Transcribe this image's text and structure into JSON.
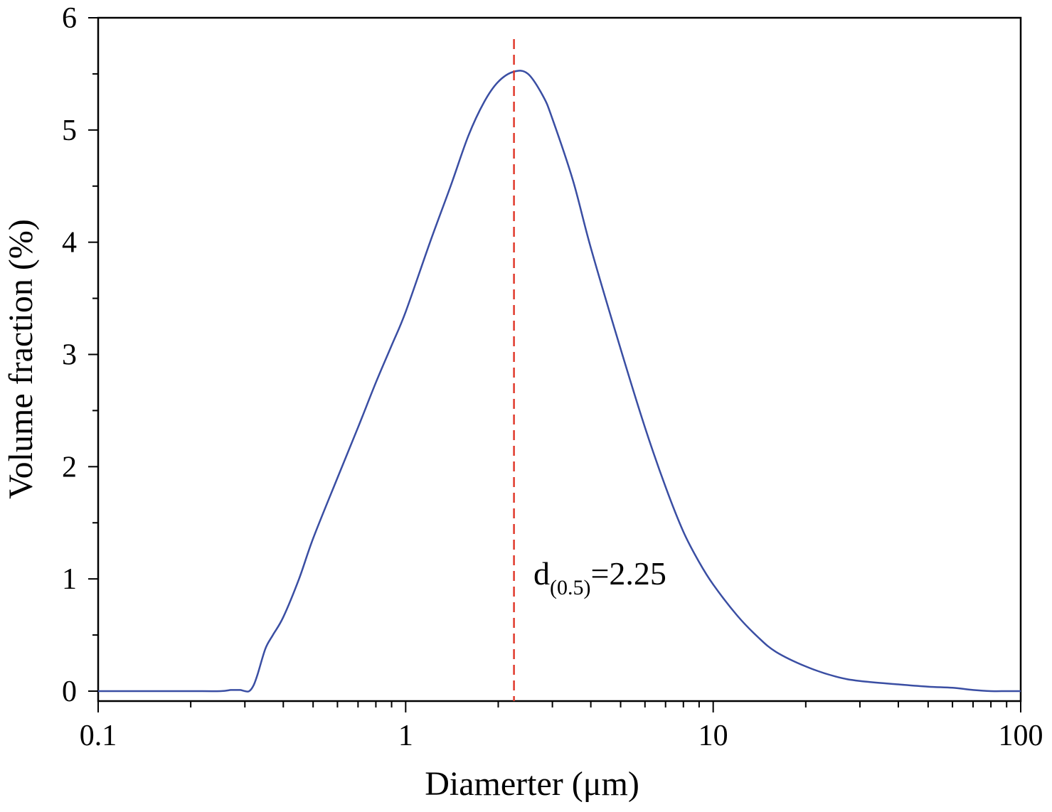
{
  "chart_data": {
    "type": "line",
    "title": "",
    "xlabel": "Diamerter (μm)",
    "ylabel": "Volume fraction (%)",
    "xscale": "log",
    "xlim": [
      0.1,
      100
    ],
    "ylim": [
      0,
      6
    ],
    "grid": false,
    "legend": "none",
    "x_ticks": [
      {
        "value": 0.1,
        "label": "0.1"
      },
      {
        "value": 1,
        "label": "1"
      },
      {
        "value": 10,
        "label": "10"
      },
      {
        "value": 100,
        "label": "100"
      }
    ],
    "y_ticks": [
      {
        "value": 0,
        "label": "0"
      },
      {
        "value": 1,
        "label": "1"
      },
      {
        "value": 2,
        "label": "2"
      },
      {
        "value": 3,
        "label": "3"
      },
      {
        "value": 4,
        "label": "4"
      },
      {
        "value": 5,
        "label": "5"
      },
      {
        "value": 6,
        "label": "6"
      }
    ],
    "series": [
      {
        "color": "#3a4ea3",
        "x": [
          0.1,
          0.15,
          0.2,
          0.25,
          0.27,
          0.28,
          0.29,
          0.3,
          0.31,
          0.32,
          0.33,
          0.35,
          0.37,
          0.4,
          0.45,
          0.5,
          0.6,
          0.7,
          0.8,
          0.9,
          1.0,
          1.2,
          1.4,
          1.6,
          1.8,
          2.0,
          2.25,
          2.5,
          2.8,
          3.0,
          3.5,
          4.0,
          5.0,
          6.0,
          7.0,
          8.0,
          9.0,
          10,
          12,
          14,
          16,
          20,
          25,
          30,
          40,
          50,
          60,
          70,
          80,
          90,
          100
        ],
        "y": [
          0,
          0,
          0,
          0,
          0.01,
          0.01,
          0.01,
          0.0,
          0.0,
          0.05,
          0.15,
          0.38,
          0.5,
          0.66,
          1.0,
          1.36,
          1.9,
          2.35,
          2.75,
          3.08,
          3.38,
          4.0,
          4.5,
          4.95,
          5.25,
          5.43,
          5.52,
          5.5,
          5.3,
          5.1,
          4.55,
          3.95,
          3.05,
          2.35,
          1.82,
          1.42,
          1.15,
          0.95,
          0.67,
          0.48,
          0.35,
          0.22,
          0.13,
          0.09,
          0.06,
          0.04,
          0.03,
          0.01,
          0.0,
          0.0,
          0.0
        ]
      }
    ],
    "reference_line": {
      "x": 2.25,
      "color": "#e0392b",
      "style": "dashed"
    },
    "annotation": {
      "main": "d",
      "subscript": "(0.5)",
      "value": "=2.25"
    }
  }
}
